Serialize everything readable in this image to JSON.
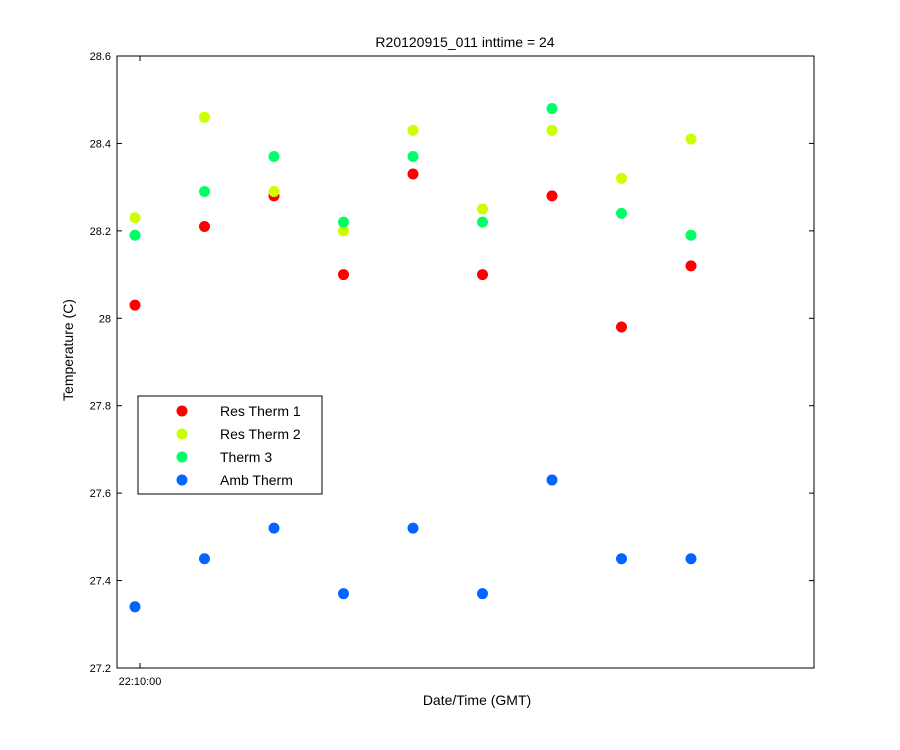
{
  "chart_data": {
    "type": "scatter",
    "title": "R20120915_011 inttime = 24",
    "xlabel": "Date/Time (GMT)",
    "ylabel": "Temperature (C)",
    "ylim": [
      27.2,
      28.6
    ],
    "yticks": [
      27.2,
      27.4,
      27.6,
      27.8,
      28,
      28.2,
      28.4,
      28.6
    ],
    "ytick_labels": [
      "27.2",
      "27.4",
      "27.6",
      "27.8",
      "28",
      "28.2",
      "28.4",
      "28.6"
    ],
    "xtick_labels": [
      "22:10:00"
    ],
    "x": [
      1,
      2,
      3,
      4,
      5,
      6,
      7,
      8,
      9
    ],
    "grid": false,
    "legend_position": "middle-left",
    "series": [
      {
        "name": "Res Therm 1",
        "color": "#ff0000",
        "values": [
          28.03,
          28.21,
          28.28,
          28.1,
          28.33,
          28.1,
          28.28,
          27.98,
          28.12
        ]
      },
      {
        "name": "Res Therm 2",
        "color": "#ccff00",
        "values": [
          28.23,
          28.46,
          28.29,
          28.2,
          28.43,
          28.25,
          28.43,
          28.32,
          28.41
        ]
      },
      {
        "name": "Therm 3",
        "color": "#00ff66",
        "values": [
          28.19,
          28.29,
          28.37,
          28.22,
          28.37,
          28.22,
          28.48,
          28.24,
          28.19
        ]
      },
      {
        "name": "Amb Therm",
        "color": "#0066ff",
        "values": [
          27.34,
          27.45,
          27.52,
          27.37,
          27.52,
          27.37,
          27.63,
          27.45,
          27.45
        ]
      }
    ]
  }
}
